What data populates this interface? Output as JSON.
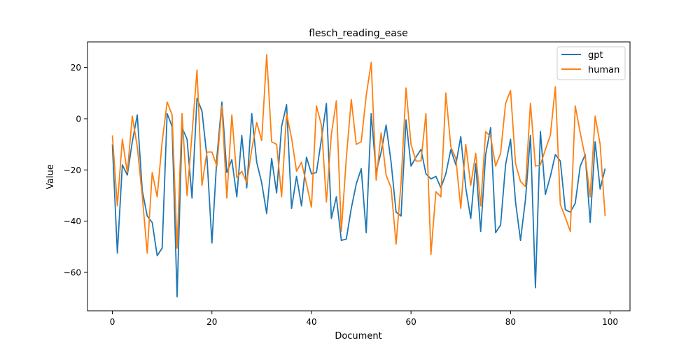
{
  "chart_data": {
    "type": "line",
    "title": "flesch_reading_ease",
    "xlabel": "Document",
    "ylabel": "Value",
    "xlim": [
      -5,
      104
    ],
    "ylim": [
      -75,
      30
    ],
    "xticks": [
      0,
      20,
      40,
      60,
      80,
      100
    ],
    "yticks": [
      -60,
      -40,
      -20,
      0,
      20
    ],
    "grid": false,
    "legend_position": "top-right",
    "series": [
      {
        "name": "gpt",
        "color": "#1f77b4",
        "x": [
          0,
          1,
          2,
          3,
          4,
          5,
          6,
          7,
          8,
          9,
          10,
          11,
          12,
          13,
          14,
          15,
          16,
          17,
          18,
          19,
          20,
          21,
          22,
          23,
          24,
          25,
          26,
          27,
          28,
          29,
          30,
          31,
          32,
          33,
          34,
          35,
          36,
          37,
          38,
          39,
          40,
          41,
          42,
          43,
          44,
          45,
          46,
          47,
          48,
          49,
          50,
          51,
          52,
          53,
          54,
          55,
          56,
          57,
          58,
          59,
          60,
          61,
          62,
          63,
          64,
          65,
          66,
          67,
          68,
          69,
          70,
          71,
          72,
          73,
          74,
          75,
          76,
          77,
          78,
          79,
          80,
          81,
          82,
          83,
          84,
          85,
          86,
          87,
          88,
          89,
          90,
          91,
          92,
          93,
          94,
          95,
          96,
          97,
          98,
          99
        ],
        "values": [
          -10,
          -52.5,
          -18,
          -22,
          -9,
          1.5,
          -28,
          -38,
          -40.5,
          -53.5,
          -50.5,
          2,
          -3,
          -69.5,
          -3.5,
          -8,
          -31,
          8,
          3,
          -15,
          -48.5,
          -15,
          6.5,
          -21,
          -16,
          -30.5,
          -6.5,
          -27,
          2,
          -17,
          -25,
          -37,
          -15.5,
          -29,
          -3,
          5.5,
          -35,
          -22.5,
          -34,
          -15,
          -21.5,
          -21,
          -8,
          6,
          -39,
          -30.5,
          -47.5,
          -47,
          -35,
          -25.5,
          -19.5,
          -44.5,
          2,
          -21,
          -13,
          -2.5,
          -17,
          -36.5,
          -38,
          -0.5,
          -18.5,
          -15,
          -12,
          -21.5,
          -23.5,
          -22.5,
          -27,
          -21.5,
          -12,
          -18,
          -7,
          -27,
          -39,
          -17.5,
          -44,
          -14,
          -3.5,
          -44.5,
          -41.5,
          -18,
          -8,
          -32.5,
          -47.5,
          -31.5,
          -6.5,
          -66,
          -5,
          -29.5,
          -22.5,
          -14,
          -16.5,
          -35.5,
          -36.5,
          -33,
          -18.5,
          -14,
          -40.5,
          -9,
          -27.5,
          -19.5
        ]
      },
      {
        "name": "human",
        "color": "#ff7f0e",
        "x": [
          0,
          1,
          2,
          3,
          4,
          5,
          6,
          7,
          8,
          9,
          10,
          11,
          12,
          13,
          14,
          15,
          16,
          17,
          18,
          19,
          20,
          21,
          22,
          23,
          24,
          25,
          26,
          27,
          28,
          29,
          30,
          31,
          32,
          33,
          34,
          35,
          36,
          37,
          38,
          39,
          40,
          41,
          42,
          43,
          44,
          45,
          46,
          47,
          48,
          49,
          50,
          51,
          52,
          53,
          54,
          55,
          56,
          57,
          58,
          59,
          60,
          61,
          62,
          63,
          64,
          65,
          66,
          67,
          68,
          69,
          70,
          71,
          72,
          73,
          74,
          75,
          76,
          77,
          78,
          79,
          80,
          81,
          82,
          83,
          84,
          85,
          86,
          87,
          88,
          89,
          90,
          91,
          92,
          93,
          94,
          95,
          96,
          97,
          98,
          99
        ],
        "values": [
          -6.5,
          -34,
          -8,
          -21,
          1,
          -11,
          -30,
          -52.5,
          -21,
          -30.5,
          -9,
          6.5,
          1.5,
          -50.5,
          2,
          -30,
          -6,
          19,
          -26,
          -13,
          -13,
          -18.5,
          5,
          -31,
          1.5,
          -23,
          -20.5,
          -25,
          -12,
          -1.5,
          -8.5,
          25,
          -9,
          -10,
          -30.5,
          2,
          -7.5,
          -20.5,
          -17,
          -25.5,
          -34.5,
          5,
          -2.5,
          -32.5,
          -6,
          7,
          -44,
          -15.5,
          7.5,
          -10,
          -9,
          9,
          22,
          -24,
          -5.5,
          -22,
          -27,
          -49,
          -25,
          12,
          -10,
          -16.5,
          -16.5,
          2,
          -53,
          -28.5,
          -30.5,
          10,
          -11,
          -15.5,
          -35,
          -10,
          -26,
          -13.5,
          -34,
          -5,
          -7,
          -18.5,
          -13.5,
          6,
          11,
          -17.5,
          -24.5,
          -26.5,
          6,
          -18.5,
          -18,
          -12,
          -6.5,
          12.5,
          -33.5,
          -38.5,
          -44,
          5,
          -5.5,
          -15,
          -30.5,
          1,
          -10,
          -38
        ]
      }
    ]
  }
}
